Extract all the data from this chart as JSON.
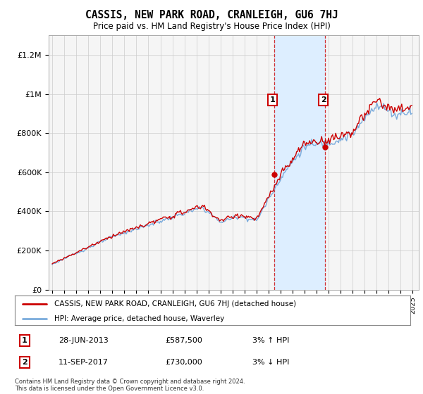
{
  "title": "CASSIS, NEW PARK ROAD, CRANLEIGH, GU6 7HJ",
  "subtitle": "Price paid vs. HM Land Registry's House Price Index (HPI)",
  "ylabel_ticks": [
    "£0",
    "£200K",
    "£400K",
    "£600K",
    "£800K",
    "£1M",
    "£1.2M"
  ],
  "ytick_values": [
    0,
    200000,
    400000,
    600000,
    800000,
    1000000,
    1200000
  ],
  "ylim": [
    0,
    1300000
  ],
  "xlim_start": 1994.7,
  "xlim_end": 2025.5,
  "xticks": [
    1995,
    1996,
    1997,
    1998,
    1999,
    2000,
    2001,
    2002,
    2003,
    2004,
    2005,
    2006,
    2007,
    2008,
    2009,
    2010,
    2011,
    2012,
    2013,
    2014,
    2015,
    2016,
    2017,
    2018,
    2019,
    2020,
    2021,
    2022,
    2023,
    2024,
    2025
  ],
  "hpi_color": "#7aabdc",
  "price_color": "#cc0000",
  "shade_color": "#ddeeff",
  "marker1_x": 2013.49,
  "marker1_y": 587500,
  "marker2_x": 2017.71,
  "marker2_y": 730000,
  "shade_x1": 2013.49,
  "shade_x2": 2017.71,
  "legend_label1": "CASSIS, NEW PARK ROAD, CRANLEIGH, GU6 7HJ (detached house)",
  "legend_label2": "HPI: Average price, detached house, Waverley",
  "annotation1_label": "1",
  "annotation2_label": "2",
  "annotation1_date": "28-JUN-2013",
  "annotation1_price": "£587,500",
  "annotation1_hpi": "3% ↑ HPI",
  "annotation2_date": "11-SEP-2017",
  "annotation2_price": "£730,000",
  "annotation2_hpi": "3% ↓ HPI",
  "footer": "Contains HM Land Registry data © Crown copyright and database right 2024.\nThis data is licensed under the Open Government Licence v3.0.",
  "background_color": "#ffffff",
  "plot_bg_color": "#f5f5f5",
  "grid_color": "#cccccc"
}
